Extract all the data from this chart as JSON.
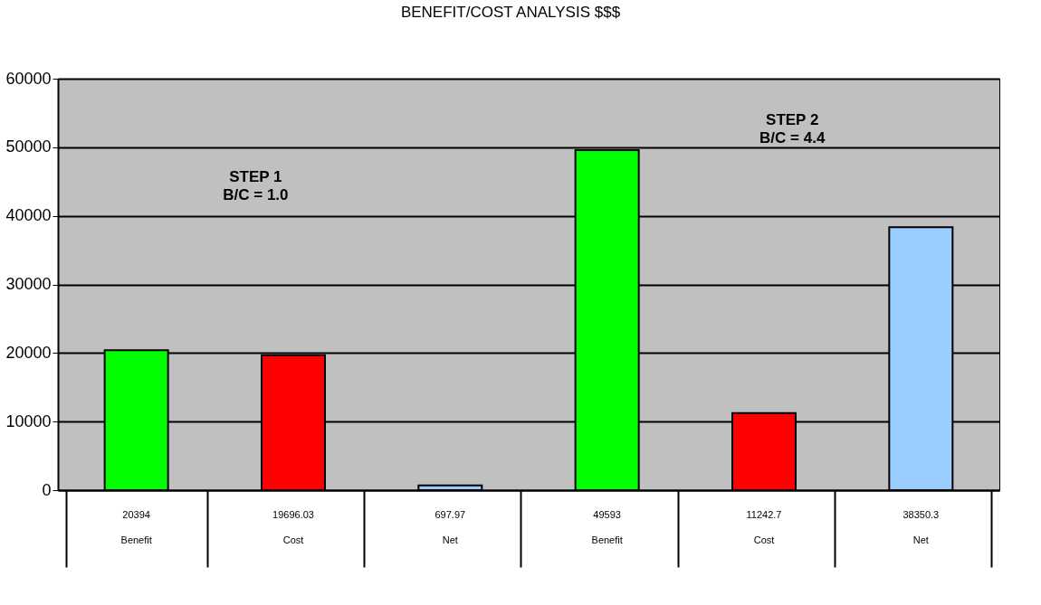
{
  "chart_data": {
    "type": "bar",
    "title": "BENEFIT/COST ANALYSIS $$$",
    "categories": [
      "Benefit",
      "Cost",
      "Net",
      "Benefit",
      "Cost",
      "Net"
    ],
    "values": [
      20394,
      19696.03,
      697.97,
      49593,
      11242.7,
      38350.3
    ],
    "colors": [
      "#00ff00",
      "#ff0000",
      "#99ccff",
      "#00ff00",
      "#ff0000",
      "#99ccff"
    ],
    "ylim": [
      0,
      60000
    ],
    "yticks": [
      0,
      10000,
      20000,
      30000,
      40000,
      50000,
      60000
    ],
    "grid": "y",
    "data_labels": true,
    "legend": false,
    "annotations": [
      "STEP 1\nB/C =  1.0",
      "STEP 2\nB/C =  4.4"
    ]
  }
}
